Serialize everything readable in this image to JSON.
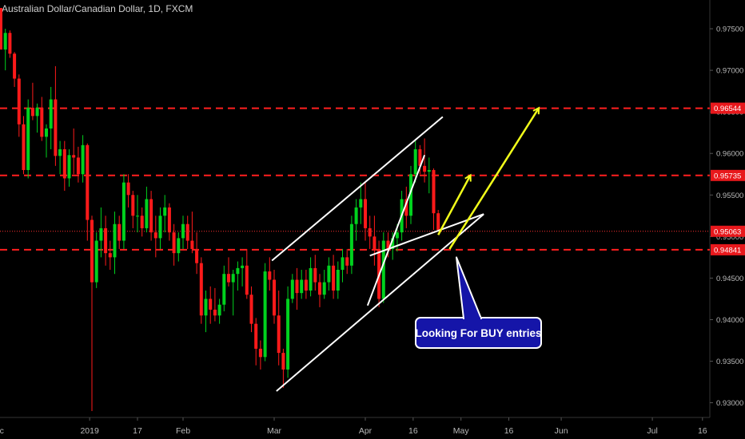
{
  "title": "Australian Dollar/Canadian Dollar, 1D, FXCM",
  "colors": {
    "background": "#000000",
    "grid": "#1a1a1a",
    "axis_text": "#b8b8b8",
    "up": "#00d21e",
    "down": "#ff1a1a",
    "level_line": "#ff1f1f",
    "price_line": "#ff3030",
    "channel": "#ffffff",
    "arrow": "#f2ff1a",
    "callout_bg": "#1515a8",
    "callout_border": "#ffffff"
  },
  "chart_data": {
    "type": "candlestick",
    "symbol": "Australian Dollar/Canadian Dollar",
    "interval": "1D",
    "source": "FXCM",
    "ylim": [
      0.929,
      0.9775
    ],
    "y_ticks": [
      "0.97500",
      "0.97000",
      "0.96500",
      "0.96000",
      "0.95500",
      "0.95000",
      "0.94500",
      "0.94000",
      "0.93500",
      "0.93000"
    ],
    "y_tick_values": [
      0.975,
      0.97,
      0.965,
      0.96,
      0.955,
      0.95,
      0.945,
      0.94,
      0.935,
      0.93
    ],
    "x_ticks": [
      {
        "label": "ec",
        "index": -0.3
      },
      {
        "label": "2019",
        "index": 19.5
      },
      {
        "label": "17",
        "index": 30
      },
      {
        "label": "Feb",
        "index": 40
      },
      {
        "label": "Mar",
        "index": 60
      },
      {
        "label": "Apr",
        "index": 80
      },
      {
        "label": "16",
        "index": 90.5
      },
      {
        "label": "May",
        "index": 101
      },
      {
        "label": "16",
        "index": 111.5
      },
      {
        "label": "Jun",
        "index": 123
      },
      {
        "label": "Jul",
        "index": 143
      },
      {
        "label": "16",
        "index": 154
      }
    ],
    "candles": [
      [
        0.9775,
        0.9775,
        0.9725,
        0.9725
      ],
      [
        0.9725,
        0.975,
        0.97,
        0.9745
      ],
      [
        0.9745,
        0.9748,
        0.9715,
        0.972
      ],
      [
        0.972,
        0.9722,
        0.968,
        0.969
      ],
      [
        0.969,
        0.9695,
        0.962,
        0.9635
      ],
      [
        0.9635,
        0.9645,
        0.9575,
        0.958
      ],
      [
        0.958,
        0.9665,
        0.957,
        0.9655
      ],
      [
        0.9655,
        0.9685,
        0.964,
        0.9645
      ],
      [
        0.9645,
        0.966,
        0.9625,
        0.9655
      ],
      [
        0.9655,
        0.9668,
        0.9615,
        0.962
      ],
      [
        0.962,
        0.9635,
        0.9595,
        0.963
      ],
      [
        0.963,
        0.968,
        0.9605,
        0.9665
      ],
      [
        0.9665,
        0.9705,
        0.9585,
        0.9597
      ],
      [
        0.9597,
        0.9615,
        0.9575,
        0.9605
      ],
      [
        0.9605,
        0.9615,
        0.9555,
        0.957
      ],
      [
        0.957,
        0.9605,
        0.956,
        0.9598
      ],
      [
        0.9598,
        0.963,
        0.9575,
        0.9595
      ],
      [
        0.9595,
        0.9608,
        0.9565,
        0.9575
      ],
      [
        0.9575,
        0.9622,
        0.9565,
        0.961
      ],
      [
        0.961,
        0.9612,
        0.9495,
        0.952
      ],
      [
        0.952,
        0.9525,
        0.929,
        0.9445
      ],
      [
        0.9445,
        0.9505,
        0.9438,
        0.9495
      ],
      [
        0.9495,
        0.9535,
        0.9475,
        0.951
      ],
      [
        0.951,
        0.9525,
        0.9465,
        0.948
      ],
      [
        0.948,
        0.9495,
        0.946,
        0.9475
      ],
      [
        0.9475,
        0.953,
        0.9455,
        0.9515
      ],
      [
        0.9515,
        0.9525,
        0.9485,
        0.9495
      ],
      [
        0.9495,
        0.9575,
        0.9485,
        0.9565
      ],
      [
        0.9565,
        0.9575,
        0.9535,
        0.955
      ],
      [
        0.955,
        0.9555,
        0.951,
        0.9525
      ],
      [
        0.9525,
        0.955,
        0.9505,
        0.9525
      ],
      [
        0.9525,
        0.9535,
        0.95,
        0.951
      ],
      [
        0.951,
        0.956,
        0.9505,
        0.9545
      ],
      [
        0.9545,
        0.9555,
        0.9495,
        0.9505
      ],
      [
        0.9505,
        0.9525,
        0.9475,
        0.9498
      ],
      [
        0.9498,
        0.9535,
        0.9485,
        0.9525
      ],
      [
        0.9525,
        0.955,
        0.9505,
        0.9535
      ],
      [
        0.9535,
        0.954,
        0.9495,
        0.9505
      ],
      [
        0.9505,
        0.9515,
        0.9465,
        0.948
      ],
      [
        0.948,
        0.9505,
        0.947,
        0.9498
      ],
      [
        0.9498,
        0.9525,
        0.9485,
        0.9515
      ],
      [
        0.9515,
        0.9525,
        0.9485,
        0.9495
      ],
      [
        0.9495,
        0.953,
        0.948,
        0.9485
      ],
      [
        0.9485,
        0.9505,
        0.9455,
        0.9468
      ],
      [
        0.9468,
        0.9475,
        0.9395,
        0.9405
      ],
      [
        0.9405,
        0.9435,
        0.9385,
        0.9425
      ],
      [
        0.9425,
        0.944,
        0.9395,
        0.9412
      ],
      [
        0.9412,
        0.9438,
        0.9398,
        0.9405
      ],
      [
        0.9405,
        0.9425,
        0.9395,
        0.9418
      ],
      [
        0.9418,
        0.9465,
        0.941,
        0.9455
      ],
      [
        0.9455,
        0.9475,
        0.944,
        0.9445
      ],
      [
        0.9445,
        0.946,
        0.9405,
        0.9455
      ],
      [
        0.9455,
        0.947,
        0.9435,
        0.9462
      ],
      [
        0.9462,
        0.9475,
        0.944,
        0.9465
      ],
      [
        0.9465,
        0.9485,
        0.9425,
        0.943
      ],
      [
        0.943,
        0.944,
        0.9385,
        0.9395
      ],
      [
        0.9395,
        0.9402,
        0.9345,
        0.9365
      ],
      [
        0.9365,
        0.9375,
        0.934,
        0.9355
      ],
      [
        0.9355,
        0.9468,
        0.935,
        0.9458
      ],
      [
        0.9458,
        0.9475,
        0.9435,
        0.9448
      ],
      [
        0.9448,
        0.946,
        0.9395,
        0.9405
      ],
      [
        0.9405,
        0.9435,
        0.9345,
        0.936
      ],
      [
        0.936,
        0.9365,
        0.9318,
        0.934
      ],
      [
        0.934,
        0.944,
        0.933,
        0.9425
      ],
      [
        0.9425,
        0.9455,
        0.942,
        0.9448
      ],
      [
        0.9448,
        0.9462,
        0.9412,
        0.9432
      ],
      [
        0.9432,
        0.946,
        0.9425,
        0.9448
      ],
      [
        0.9448,
        0.946,
        0.9425,
        0.9435
      ],
      [
        0.9435,
        0.9475,
        0.9428,
        0.9462
      ],
      [
        0.9462,
        0.9478,
        0.9435,
        0.9445
      ],
      [
        0.9445,
        0.9455,
        0.9415,
        0.943
      ],
      [
        0.943,
        0.946,
        0.9425,
        0.9445
      ],
      [
        0.9445,
        0.9475,
        0.9435,
        0.9465
      ],
      [
        0.9465,
        0.9478,
        0.9425,
        0.9435
      ],
      [
        0.9435,
        0.947,
        0.9425,
        0.946
      ],
      [
        0.946,
        0.9485,
        0.9445,
        0.9475
      ],
      [
        0.9475,
        0.9485,
        0.9455,
        0.9465
      ],
      [
        0.9465,
        0.9525,
        0.9455,
        0.9515
      ],
      [
        0.9515,
        0.9545,
        0.9495,
        0.9535
      ],
      [
        0.9535,
        0.9565,
        0.9515,
        0.9545
      ],
      [
        0.9545,
        0.9565,
        0.9495,
        0.951
      ],
      [
        0.951,
        0.9525,
        0.9485,
        0.95
      ],
      [
        0.95,
        0.9525,
        0.9465,
        0.9485
      ],
      [
        0.9485,
        0.9495,
        0.9415,
        0.9425
      ],
      [
        0.9425,
        0.9505,
        0.942,
        0.9495
      ],
      [
        0.9495,
        0.9505,
        0.9475,
        0.9485
      ],
      [
        0.9485,
        0.9505,
        0.9472,
        0.9498
      ],
      [
        0.9498,
        0.9515,
        0.9482,
        0.9505
      ],
      [
        0.9505,
        0.9555,
        0.9495,
        0.9545
      ],
      [
        0.9545,
        0.956,
        0.951,
        0.9525
      ],
      [
        0.9525,
        0.9585,
        0.9515,
        0.9575
      ],
      [
        0.9575,
        0.9615,
        0.9565,
        0.9605
      ],
      [
        0.9605,
        0.961,
        0.9575,
        0.9585
      ],
      [
        0.9585,
        0.9618,
        0.9565,
        0.9578
      ],
      [
        0.9578,
        0.9595,
        0.9552,
        0.958
      ],
      [
        0.958,
        0.9582,
        0.9508,
        0.9528
      ],
      [
        0.9528,
        0.9532,
        0.9506,
        0.9508
      ]
    ]
  },
  "levels": [
    {
      "label": "0.96544",
      "value": 0.96544,
      "style": "dashed"
    },
    {
      "label": "0.95735",
      "value": 0.95735,
      "style": "dashed"
    },
    {
      "label": "0.95063",
      "value": 0.95063,
      "style": "dotted"
    },
    {
      "label": "0.94841",
      "value": 0.94841,
      "style": "dashed"
    }
  ],
  "annotations": {
    "callout_text": "Looking For BUY entries",
    "channel_upper": [
      [
        59.5,
        0.9471
      ],
      [
        97,
        0.9644
      ]
    ],
    "channel_lower": [
      [
        60.5,
        0.9314
      ],
      [
        106,
        0.9527
      ]
    ],
    "wedge_upper": [
      [
        80.5,
        0.9417
      ],
      [
        93,
        0.9598
      ]
    ],
    "wedge_lower": [
      [
        81,
        0.9477
      ],
      [
        106,
        0.9527
      ]
    ],
    "arrow_long": {
      "from": [
        98.5,
        0.9485
      ],
      "to": [
        118,
        0.9654
      ]
    },
    "arrow_short": {
      "from": [
        96,
        0.9502
      ],
      "to": [
        103,
        0.9573
      ]
    },
    "callout_pointer_tip": [
      100,
      0.9475
    ]
  }
}
